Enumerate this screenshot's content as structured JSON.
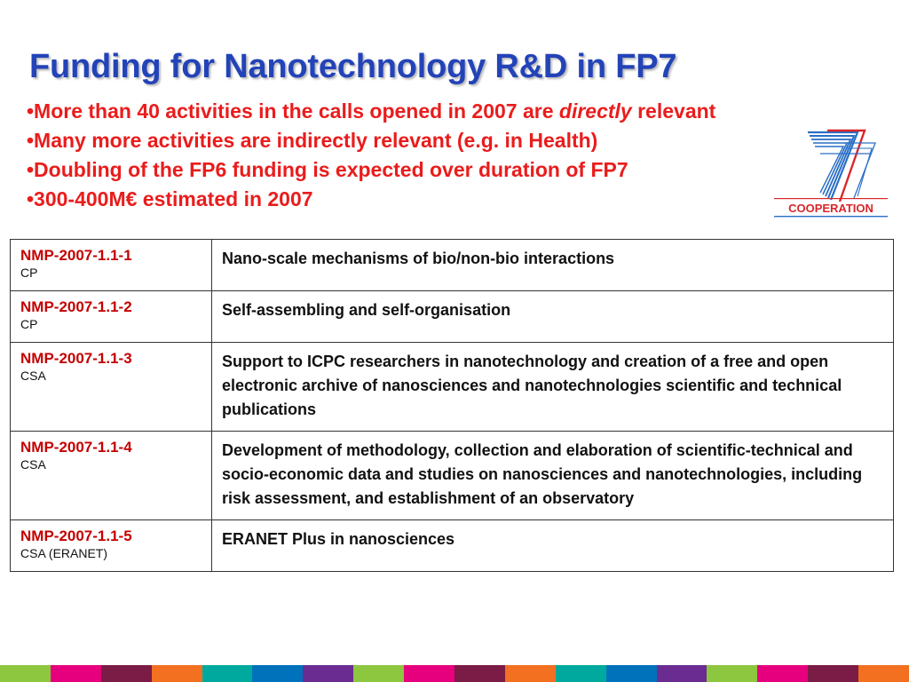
{
  "slide": {
    "title": "Funding for Nanotechnology R&D in FP7",
    "bullets": [
      {
        "prefix": "•More than 40 activities in the calls opened in 2007 are ",
        "emphasis": "directly",
        "suffix": " relevant"
      },
      {
        "prefix": "•Many more activities are indirectly relevant (e.g. in Health)",
        "emphasis": "",
        "suffix": ""
      },
      {
        "prefix": "•Doubling of the FP6 funding is expected over duration of FP7",
        "emphasis": "",
        "suffix": ""
      },
      {
        "prefix": "•300-400M€ estimated in 2007",
        "emphasis": "",
        "suffix": ""
      }
    ],
    "logo_text": "COOPERATION",
    "logo_digit": "7"
  },
  "calls": [
    {
      "code": "NMP-2007-1.1-1",
      "type": "CP",
      "description": "Nano-scale mechanisms of bio/non-bio interactions"
    },
    {
      "code": "NMP-2007-1.1-2",
      "type": "CP",
      "description": "Self-assembling and self-organisation"
    },
    {
      "code": "NMP-2007-1.1-3",
      "type": "CSA",
      "description": "Support to ICPC researchers in nanotechnology and creation of a free and open electronic archive of nanosciences and nanotechnologies scientific and technical publications"
    },
    {
      "code": "NMP-2007-1.1-4",
      "type": "CSA",
      "description": "Development of methodology, collection and elaboration of scientific-technical and socio-economic data and studies on nanosciences and nanotechnologies, including risk assessment, and establishment of an observatory"
    },
    {
      "code": "NMP-2007-1.1-5",
      "type": "CSA (ERANET)",
      "description": "ERANET Plus in nanosciences"
    }
  ],
  "colors": {
    "title": "#2343b8",
    "bullets": "#ea1c1c",
    "code": "#c40000",
    "logo_blue": "#2a6fc6",
    "logo_red": "#d9262b",
    "footer": [
      "#8dc63f",
      "#e6007e",
      "#7a1c45",
      "#f37021",
      "#00a99d",
      "#0072bc",
      "#6b2c91",
      "#8dc63f",
      "#e6007e",
      "#7a1c45",
      "#f37021",
      "#00a99d",
      "#0072bc",
      "#6b2c91",
      "#8dc63f",
      "#e6007e",
      "#7a1c45",
      "#f37021"
    ]
  }
}
